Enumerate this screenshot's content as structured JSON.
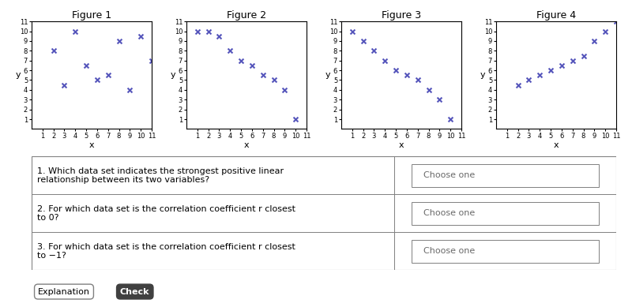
{
  "chart_data": [
    {
      "type": "scatter",
      "title": "Figure 1",
      "xlabel": "x",
      "ylabel": "y",
      "x": [
        2,
        3,
        4,
        5,
        6,
        7,
        8,
        9,
        10,
        11
      ],
      "values": [
        8,
        4.5,
        10,
        6.5,
        5,
        5.5,
        9,
        4,
        9.5,
        7
      ],
      "color": "#5555bb",
      "marker": "x",
      "xlim": [
        0,
        11
      ],
      "ylim": [
        0,
        11
      ],
      "xticks": [
        1,
        2,
        3,
        4,
        5,
        6,
        7,
        8,
        9,
        10,
        11
      ],
      "yticks": [
        1,
        2,
        3,
        4,
        5,
        6,
        7,
        8,
        9,
        10,
        11
      ]
    },
    {
      "type": "scatter",
      "title": "Figure 2",
      "xlabel": "x",
      "ylabel": "y",
      "x": [
        1,
        2,
        3,
        4,
        5,
        6,
        7,
        8,
        9,
        10
      ],
      "values": [
        10,
        10,
        9.5,
        8,
        7,
        6.5,
        5.5,
        5,
        4,
        1
      ],
      "color": "#5555bb",
      "marker": "x",
      "xlim": [
        0,
        11
      ],
      "ylim": [
        0,
        11
      ],
      "xticks": [
        1,
        2,
        3,
        4,
        5,
        6,
        7,
        8,
        9,
        10,
        11
      ],
      "yticks": [
        1,
        2,
        3,
        4,
        5,
        6,
        7,
        8,
        9,
        10,
        11
      ]
    },
    {
      "type": "scatter",
      "title": "Figure 3",
      "xlabel": "x",
      "ylabel": "y",
      "x": [
        1,
        2,
        3,
        4,
        5,
        6,
        7,
        8,
        9,
        10
      ],
      "values": [
        10,
        9,
        8,
        7,
        6,
        5.5,
        5,
        4,
        3,
        1
      ],
      "color": "#5555bb",
      "marker": "x",
      "xlim": [
        0,
        11
      ],
      "ylim": [
        0,
        11
      ],
      "xticks": [
        1,
        2,
        3,
        4,
        5,
        6,
        7,
        8,
        9,
        10,
        11
      ],
      "yticks": [
        1,
        2,
        3,
        4,
        5,
        6,
        7,
        8,
        9,
        10,
        11
      ]
    },
    {
      "type": "scatter",
      "title": "Figure 4",
      "xlabel": "x",
      "ylabel": "y",
      "x": [
        2,
        3,
        4,
        5,
        6,
        7,
        8,
        9,
        10,
        11
      ],
      "values": [
        4.5,
        5,
        5.5,
        6,
        6.5,
        7,
        7.5,
        9,
        10,
        11
      ],
      "color": "#5555bb",
      "marker": "x",
      "xlim": [
        0,
        11
      ],
      "ylim": [
        0,
        11
      ],
      "xticks": [
        1,
        2,
        3,
        4,
        5,
        6,
        7,
        8,
        9,
        10,
        11
      ],
      "yticks": [
        1,
        2,
        3,
        4,
        5,
        6,
        7,
        8,
        9,
        10,
        11
      ]
    }
  ],
  "questions": [
    {
      "lines": [
        "1. Which data set indicates the strongest positive linear",
        "relationship between its two variables?"
      ],
      "prompt": "Choose one"
    },
    {
      "lines": [
        "2. For which data set is the correlation coefficient r closest",
        "to 0?"
      ],
      "prompt": "Choose one"
    },
    {
      "lines": [
        "3. For which data set is the correlation coefficient r closest",
        "to −1?"
      ],
      "prompt": "Choose one"
    }
  ],
  "buttons": [
    "Explanation",
    "Check"
  ]
}
